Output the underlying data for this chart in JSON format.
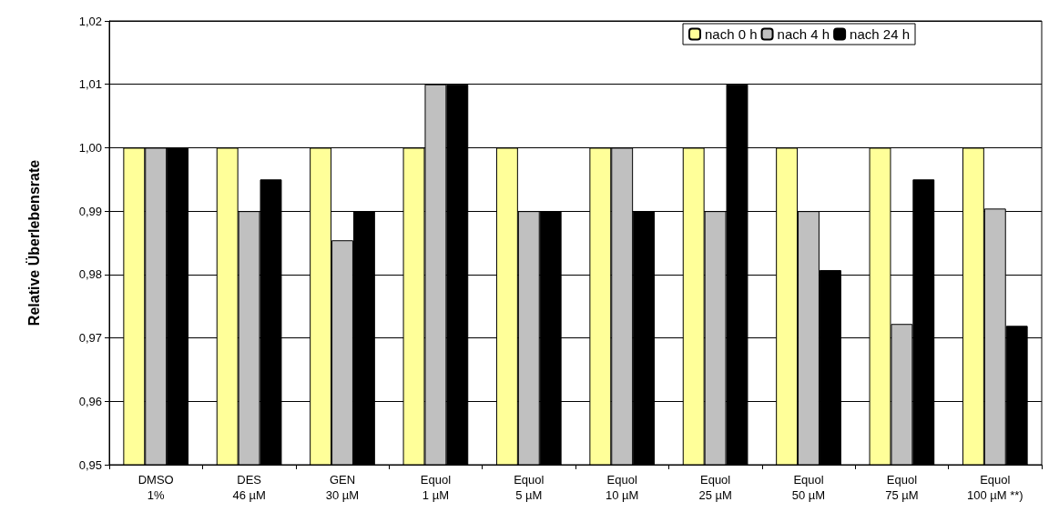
{
  "chart_data": {
    "type": "bar",
    "ylabel": "Relative Überlebensrate",
    "categories": [
      "DMSO\n1%",
      "DES\n46 µM",
      "GEN\n30 µM",
      "Equol\n1 µM",
      "Equol\n5 µM",
      "Equol\n10 µM",
      "Equol\n25 µM",
      "Equol\n50 µM",
      "Equol\n75 µM",
      "Equol\n100 µM **)"
    ],
    "series": [
      {
        "name": "nach 0 h",
        "color": "#ffff99",
        "values": [
          1,
          1,
          1,
          1,
          1,
          1,
          1,
          1,
          1,
          1
        ]
      },
      {
        "name": "nach 4 h",
        "color": "#c0c0c0",
        "values": [
          1,
          0.99,
          0.9854,
          1.01,
          0.99,
          1,
          0.99,
          0.99,
          0.9722,
          0.9904
        ]
      },
      {
        "name": "nach 24 h",
        "color": "#000000",
        "values": [
          1,
          0.995,
          0.99,
          1.01,
          0.99,
          0.99,
          1.01,
          0.9807,
          0.995,
          0.9719
        ]
      }
    ],
    "ylim": [
      0.95,
      1.02
    ],
    "yticks": [
      {
        "value": 0.95,
        "label": "0,95"
      },
      {
        "value": 0.96,
        "label": "0,96"
      },
      {
        "value": 0.97,
        "label": "0,97"
      },
      {
        "value": 0.98,
        "label": "0,98"
      },
      {
        "value": 0.99,
        "label": "0,99"
      },
      {
        "value": 1.0,
        "label": "1,00"
      },
      {
        "value": 1.01,
        "label": "1,01"
      },
      {
        "value": 1.02,
        "label": "1,02"
      }
    ],
    "grid": "y",
    "legend": "top right"
  }
}
